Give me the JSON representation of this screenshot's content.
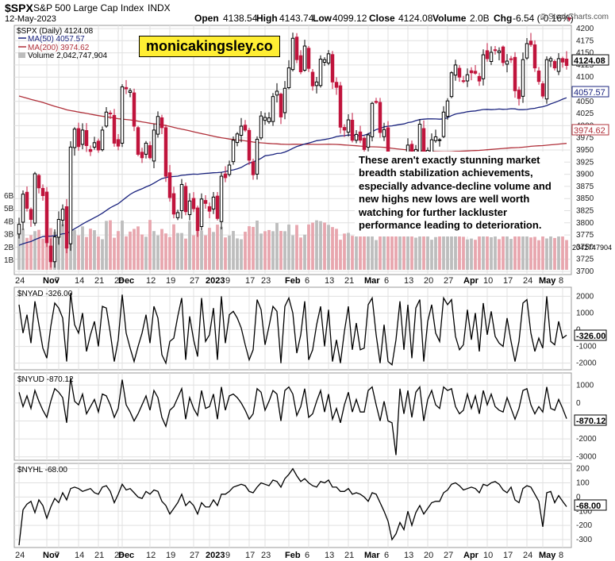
{
  "header": {
    "symbol": "$SPX",
    "name": "S&P 500 Large Cap Index",
    "exchange": "INDX",
    "date": "12-May-2023",
    "open_label": "Open",
    "open": "4138.54",
    "high_label": "High",
    "high": "4143.74",
    "low_label": "Low",
    "low": "4099.12",
    "close_label": "Close",
    "close": "4124.08",
    "volume_label": "Volume",
    "volume": "2.0B",
    "chg_label": "Chg",
    "chg": "-6.54 (-0.16%)",
    "chg_arrow": "▼",
    "brand": "© StockCharts.com"
  },
  "watermark": "monicakingsley.co",
  "annotation": "These aren't exactly stunning market breadth stabilization achievements, especially advance-decline volume and new highs new lows are well worth watching for further lackluster performance leading to deterioration.",
  "legend": {
    "price": "$SPX (Daily) 4124.08",
    "ma50": "MA(50) 4057.57",
    "ma200": "MA(200) 3974.62",
    "volume": "Volume 2,042,747,904"
  },
  "colors": {
    "up": "#000000",
    "down": "#c0143c",
    "ma50": "#1a237e",
    "ma200": "#b0303a",
    "vol_up": "#bdbdbd",
    "vol_down": "#e8a6ae",
    "grid": "#e0e0e0",
    "indicator": "#000000"
  },
  "price_labels": {
    "close": "4124.08",
    "ma50": "4057.57",
    "ma200": "3974.62",
    "volume": "2042747904"
  },
  "panel_labels": {
    "nyad": "$NYAD -326.00",
    "nyud": "$NYUD -870.12",
    "nyhl": "$NYHL -68.00"
  },
  "panel_values": {
    "nyad": "-326.00",
    "nyud": "-870.12",
    "nyhl": "-68.00"
  },
  "x_ticks": [
    "24",
    "Nov",
    "7",
    "14",
    "21",
    "28",
    "Dec",
    "12",
    "19",
    "27",
    "2023",
    "9",
    "17",
    "23",
    "Feb",
    "6",
    "13",
    "21",
    "Mar",
    "6",
    "13",
    "20",
    "27",
    "Apr",
    "10",
    "17",
    "24",
    "May",
    "8"
  ],
  "chart_data": [
    {
      "type": "candlestick",
      "title": "$SPX S&P 500 Large Cap Index INDX",
      "x": [
        "2022-10-24",
        "2022-10-25",
        "2022-10-26",
        "2022-10-27",
        "2022-10-28",
        "2022-10-31",
        "2022-11-01",
        "2022-11-02",
        "2022-11-03",
        "2022-11-04",
        "2022-11-07",
        "2022-11-08",
        "2022-11-09",
        "2022-11-10",
        "2022-11-11",
        "2022-11-14",
        "2022-11-15",
        "2022-11-16",
        "2022-11-17",
        "2022-11-18",
        "2022-11-21",
        "2022-11-22",
        "2022-11-23",
        "2022-11-25",
        "2022-11-28",
        "2022-11-29",
        "2022-11-30",
        "2022-12-01",
        "2022-12-02",
        "2022-12-05",
        "2022-12-06",
        "2022-12-07",
        "2022-12-08",
        "2022-12-09",
        "2022-12-12",
        "2022-12-13",
        "2022-12-14",
        "2022-12-15",
        "2022-12-16",
        "2022-12-19",
        "2022-12-20",
        "2022-12-21",
        "2022-12-22",
        "2022-12-23",
        "2022-12-27",
        "2022-12-28",
        "2022-12-29",
        "2022-12-30",
        "2023-01-03",
        "2023-01-04",
        "2023-01-05",
        "2023-01-06",
        "2023-01-09",
        "2023-01-10",
        "2023-01-11",
        "2023-01-12",
        "2023-01-13",
        "2023-01-17",
        "2023-01-18",
        "2023-01-19",
        "2023-01-20",
        "2023-01-23",
        "2023-01-24",
        "2023-01-25",
        "2023-01-26",
        "2023-01-27",
        "2023-01-30",
        "2023-01-31",
        "2023-02-01",
        "2023-02-02",
        "2023-02-03",
        "2023-02-06",
        "2023-02-07",
        "2023-02-08",
        "2023-02-09",
        "2023-02-10",
        "2023-02-13",
        "2023-02-14",
        "2023-02-15",
        "2023-02-16",
        "2023-02-17",
        "2023-02-21",
        "2023-02-22",
        "2023-02-23",
        "2023-02-24",
        "2023-02-27",
        "2023-02-28",
        "2023-03-01",
        "2023-03-02",
        "2023-03-03",
        "2023-03-06",
        "2023-03-07",
        "2023-03-08",
        "2023-03-09",
        "2023-03-10",
        "2023-03-13",
        "2023-03-14",
        "2023-03-15",
        "2023-03-16",
        "2023-03-17",
        "2023-03-20",
        "2023-03-21",
        "2023-03-22",
        "2023-03-23",
        "2023-03-24",
        "2023-03-27",
        "2023-03-28",
        "2023-03-29",
        "2023-03-30",
        "2023-03-31",
        "2023-04-03",
        "2023-04-04",
        "2023-04-05",
        "2023-04-06",
        "2023-04-10",
        "2023-04-11",
        "2023-04-12",
        "2023-04-13",
        "2023-04-14",
        "2023-04-17",
        "2023-04-18",
        "2023-04-19",
        "2023-04-20",
        "2023-04-21",
        "2023-04-24",
        "2023-04-25",
        "2023-04-26",
        "2023-04-27",
        "2023-04-28",
        "2023-05-01",
        "2023-05-02",
        "2023-05-03",
        "2023-05-04",
        "2023-05-05",
        "2023-05-08",
        "2023-05-09",
        "2023-05-10",
        "2023-05-11",
        "2023-05-12"
      ],
      "close": [
        3797,
        3859,
        3830,
        3807,
        3901,
        3872,
        3856,
        3759,
        3720,
        3771,
        3807,
        3828,
        3748,
        3956,
        3993,
        3957,
        3991,
        3959,
        3947,
        3965,
        3950,
        3991,
        4028,
        4026,
        3964,
        3958,
        4080,
        4076,
        4072,
        3999,
        3941,
        3934,
        3964,
        3934,
        3991,
        4019,
        3996,
        3896,
        3852,
        3818,
        3821,
        3879,
        3823,
        3845,
        3829,
        3784,
        3849,
        3840,
        3824,
        3853,
        3809,
        3896,
        3893,
        3919,
        3970,
        3983,
        3999,
        3991,
        3929,
        3899,
        3972,
        4020,
        4017,
        4016,
        4060,
        4071,
        4018,
        4077,
        4119,
        4180,
        4136,
        4111,
        4164,
        4118,
        4082,
        4090,
        4137,
        4136,
        4148,
        4090,
        4079,
        3997,
        3991,
        4012,
        3970,
        3982,
        3970,
        3951,
        3981,
        4046,
        4048,
        3986,
        3992,
        3918,
        3862,
        3855,
        3920,
        3892,
        3960,
        3917,
        3951,
        4003,
        3937,
        3949,
        3971,
        3977,
        3971,
        4028,
        4051,
        4109,
        4125,
        4100,
        4091,
        4105,
        4109,
        4108,
        4092,
        4146,
        4138,
        4151,
        4155,
        4154,
        4130,
        4133,
        4137,
        4072,
        4056,
        4136,
        4169,
        4167,
        4119,
        4091,
        4061,
        4136,
        4138,
        4119,
        4138,
        4131,
        4124
      ],
      "ma50_last": 4057.57,
      "ma200_last": 3974.62,
      "volume_last": 2042747904,
      "ylim": [
        3700,
        4200
      ],
      "yticks": [
        3700,
        3725,
        3750,
        3775,
        3800,
        3825,
        3850,
        3875,
        3900,
        3925,
        3950,
        3975,
        4000,
        4025,
        4050,
        4075,
        4100,
        4125,
        4150,
        4175,
        4200
      ],
      "volume_ticks": [
        "1B",
        "2B",
        "3B",
        "4B",
        "5B",
        "6B"
      ]
    },
    {
      "type": "line",
      "name": "$NYAD",
      "last": -326.0,
      "ylim": [
        -2300,
        2400
      ],
      "yticks": [
        2000,
        1000,
        0,
        -1000,
        -2000
      ],
      "values": [
        1500,
        -200,
        900,
        -800,
        1700,
        300,
        -1100,
        -1700,
        200,
        1600,
        1300,
        700,
        -1900,
        2200,
        300,
        -200,
        1000,
        -1300,
        -300,
        500,
        -1000,
        1400,
        1300,
        -200,
        -1900,
        -600,
        2100,
        -200,
        -1100,
        -1900,
        -1000,
        -200,
        900,
        -800,
        1400,
        700,
        -1500,
        -2000,
        -700,
        -500,
        800,
        1900,
        -1800,
        800,
        -600,
        -1600,
        1900,
        -700,
        -300,
        1300,
        -1800,
        2000,
        -800,
        900,
        1100,
        700,
        100,
        -900,
        -1800,
        -1200,
        1800,
        1200,
        -900,
        200,
        1400,
        1100,
        -2000,
        1400,
        1900,
        1000,
        -1400,
        -300,
        1700,
        -1800,
        -1200,
        300,
        1400,
        -1000,
        1200,
        -1900,
        -600,
        -2000,
        -100,
        1400,
        -1200,
        400,
        -1200,
        -1100,
        1500,
        1900,
        -300,
        -2000,
        300,
        -1900,
        -2100,
        -600,
        1700,
        -1200,
        1500,
        -1700,
        1300,
        1800,
        -1900,
        500,
        1500,
        -200,
        -700,
        1900,
        1500,
        1800,
        -400,
        -1200,
        -900,
        1200,
        -600,
        1000,
        -1300,
        1600,
        -300,
        1100,
        -400,
        -800,
        -1000,
        700,
        -700,
        -1900,
        -700,
        1600,
        1800,
        -200,
        -1300,
        -500,
        -1100,
        2000,
        -700,
        -900,
        500,
        -500,
        -326
      ]
    },
    {
      "type": "line",
      "name": "$NYUD",
      "last": -870.12,
      "ylim": [
        -3100,
        1500
      ],
      "yticks": [
        1000,
        0,
        -1000,
        -2000,
        -3000
      ],
      "values": [
        600,
        -200,
        400,
        -300,
        700,
        100,
        -400,
        -800,
        100,
        800,
        600,
        300,
        -1100,
        1400,
        100,
        -100,
        500,
        -600,
        -200,
        200,
        -500,
        500,
        400,
        -100,
        -800,
        -300,
        1300,
        -100,
        -500,
        -1000,
        -600,
        -100,
        400,
        -400,
        700,
        300,
        -800,
        -1300,
        -400,
        -200,
        300,
        800,
        -900,
        300,
        -300,
        -700,
        700,
        -300,
        -200,
        500,
        -900,
        900,
        -400,
        400,
        500,
        300,
        0,
        -400,
        -900,
        -600,
        800,
        600,
        -400,
        100,
        700,
        500,
        -1000,
        700,
        900,
        500,
        -700,
        -200,
        800,
        -800,
        -600,
        100,
        700,
        -500,
        500,
        -900,
        -300,
        -1100,
        -100,
        600,
        -500,
        200,
        -500,
        -500,
        700,
        900,
        -100,
        -1000,
        100,
        -1000,
        -1100,
        -2900,
        800,
        -600,
        700,
        -800,
        600,
        900,
        -1000,
        200,
        700,
        -100,
        -300,
        900,
        700,
        800,
        -200,
        -600,
        -400,
        500,
        -300,
        400,
        -600,
        700,
        -100,
        500,
        -200,
        -400,
        -500,
        300,
        -300,
        -900,
        -300,
        700,
        800,
        -100,
        -600,
        -200,
        -500,
        900,
        -300,
        -400,
        200,
        -300,
        -870
      ]
    },
    {
      "type": "line",
      "name": "$NYHL",
      "last": -68.0,
      "ylim": [
        -345,
        215
      ],
      "yticks": [
        200,
        100,
        0,
        -100,
        -200,
        -300
      ],
      "values": [
        -340,
        -90,
        -50,
        -30,
        -110,
        -20,
        -60,
        -150,
        -70,
        -10,
        -40,
        30,
        -20,
        60,
        70,
        60,
        40,
        50,
        60,
        30,
        20,
        70,
        80,
        40,
        -40,
        20,
        90,
        50,
        60,
        30,
        0,
        -10,
        40,
        20,
        50,
        40,
        -30,
        -60,
        -120,
        -80,
        -40,
        20,
        -60,
        -30,
        -60,
        -120,
        -40,
        -70,
        -70,
        -20,
        -60,
        20,
        20,
        40,
        70,
        80,
        90,
        80,
        40,
        30,
        70,
        100,
        90,
        80,
        120,
        110,
        70,
        130,
        160,
        200,
        150,
        110,
        130,
        100,
        80,
        70,
        110,
        100,
        120,
        70,
        70,
        40,
        40,
        60,
        20,
        30,
        20,
        0,
        -30,
        30,
        20,
        -40,
        -100,
        -170,
        -300,
        -260,
        -180,
        -230,
        -100,
        -200,
        -110,
        -60,
        -120,
        -80,
        -40,
        -30,
        -30,
        30,
        50,
        90,
        100,
        80,
        50,
        60,
        70,
        60,
        30,
        90,
        80,
        100,
        110,
        90,
        50,
        30,
        70,
        -20,
        -40,
        60,
        80,
        70,
        20,
        -30,
        -210,
        30,
        40,
        -40,
        10,
        -30,
        -68
      ]
    }
  ]
}
